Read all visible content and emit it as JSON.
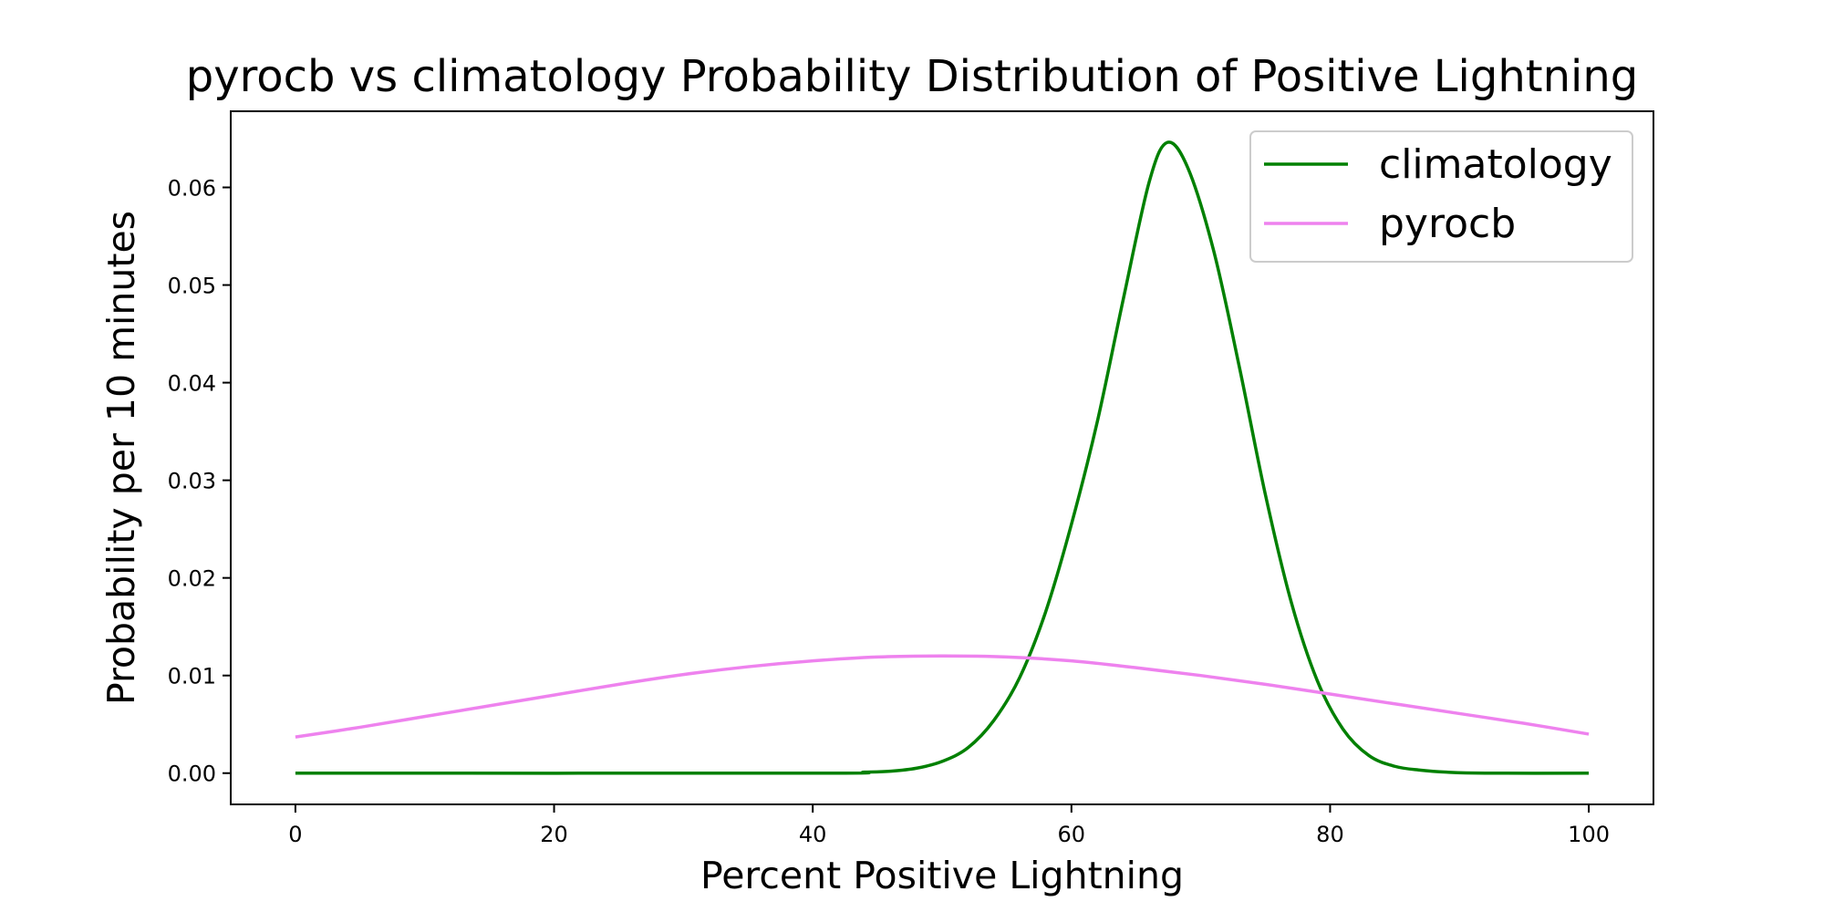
{
  "chart_data": {
    "type": "line",
    "title": "pyrocb vs climatology Probability Distribution of Positive Lightning",
    "xlabel": "Percent Positive Lightning",
    "ylabel": "Probability per 10 minutes",
    "xlim": [
      -5,
      105
    ],
    "ylim": [
      -0.0032,
      0.0678
    ],
    "xticks": [
      0,
      20,
      40,
      60,
      80,
      100
    ],
    "xtick_labels": [
      "0",
      "20",
      "40",
      "60",
      "80",
      "100"
    ],
    "yticks": [
      0.0,
      0.01,
      0.02,
      0.03,
      0.04,
      0.05,
      0.06
    ],
    "ytick_labels": [
      "0.00",
      "0.01",
      "0.02",
      "0.03",
      "0.04",
      "0.05",
      "0.06"
    ],
    "grid": false,
    "legend_position": "top-right",
    "series": [
      {
        "name": "climatology",
        "color": "#008000",
        "x": [
          0,
          40,
          44,
          46,
          48,
          50,
          52,
          54,
          56,
          58,
          60,
          62,
          64,
          66,
          67.4,
          69,
          71,
          73,
          75,
          77,
          79,
          81,
          83,
          85,
          87,
          89,
          92,
          100
        ],
        "y": [
          0.0,
          0.0,
          0.0001,
          0.0002,
          0.0005,
          0.0012,
          0.0026,
          0.0054,
          0.0098,
          0.0165,
          0.0255,
          0.036,
          0.0485,
          0.0605,
          0.0646,
          0.062,
          0.0535,
          0.0415,
          0.0285,
          0.0175,
          0.0095,
          0.0045,
          0.0018,
          0.0007,
          0.0003,
          0.0001,
          0.0,
          0.0
        ]
      },
      {
        "name": "pyrocb",
        "color": "#EE82EE",
        "x": [
          0,
          5,
          10,
          15,
          20,
          25,
          30,
          35,
          40,
          45,
          50,
          55,
          60,
          65,
          70,
          75,
          80,
          85,
          90,
          95,
          100
        ],
        "y": [
          0.0037,
          0.0047,
          0.0058,
          0.0069,
          0.008,
          0.0091,
          0.0101,
          0.0109,
          0.0115,
          0.0119,
          0.012,
          0.0119,
          0.0115,
          0.0108,
          0.01,
          0.0091,
          0.0081,
          0.0071,
          0.0061,
          0.0051,
          0.004
        ]
      }
    ]
  }
}
